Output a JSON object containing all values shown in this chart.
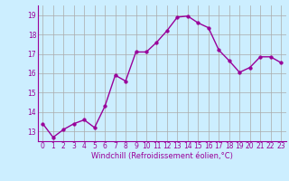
{
  "hours": [
    0,
    1,
    2,
    3,
    4,
    5,
    6,
    7,
    8,
    9,
    10,
    11,
    12,
    13,
    14,
    15,
    16,
    17,
    18,
    19,
    20,
    21,
    22,
    23
  ],
  "values": [
    13.4,
    12.7,
    13.1,
    13.4,
    13.6,
    13.2,
    14.3,
    15.9,
    15.6,
    17.1,
    17.1,
    17.6,
    18.2,
    18.9,
    18.95,
    18.6,
    18.35,
    17.2,
    16.65,
    16.05,
    16.3,
    16.85,
    16.85,
    16.55
  ],
  "line_color": "#990099",
  "marker_color": "#990099",
  "bg_color": "#cceeff",
  "grid_color": "#aaaaaa",
  "xlabel": "Windchill (Refroidissement éolien,°C)",
  "ylim": [
    12.5,
    19.5
  ],
  "yticks": [
    13,
    14,
    15,
    16,
    17,
    18,
    19
  ],
  "xticks": [
    0,
    1,
    2,
    3,
    4,
    5,
    6,
    7,
    8,
    9,
    10,
    11,
    12,
    13,
    14,
    15,
    16,
    17,
    18,
    19,
    20,
    21,
    22,
    23
  ],
  "font_color": "#990099",
  "linewidth": 1.0,
  "markersize": 2.5,
  "tick_fontsize": 5.5,
  "xlabel_fontsize": 6.0
}
